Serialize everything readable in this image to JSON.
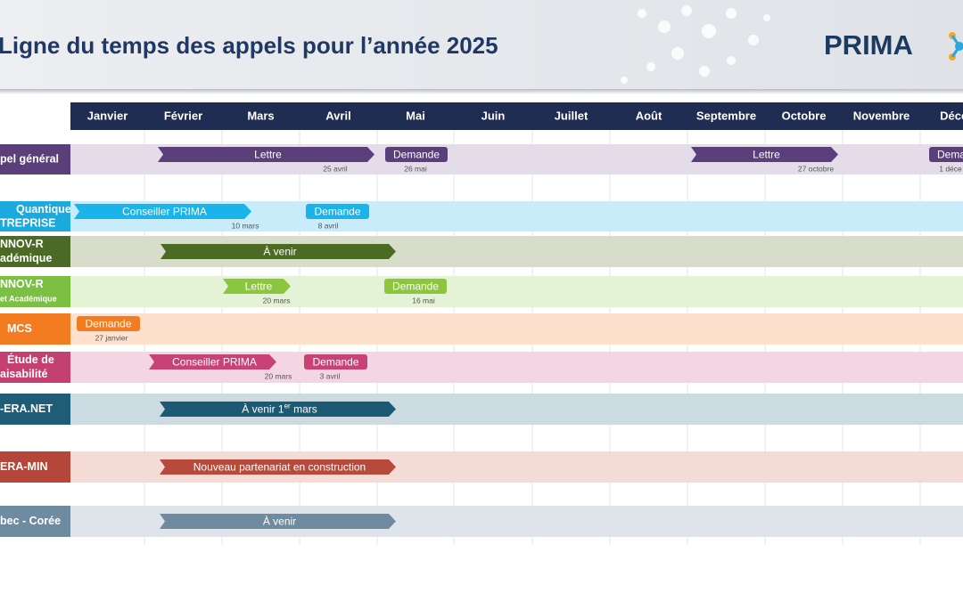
{
  "header": {
    "title": "Ligne du temps des appels pour l’année 2025",
    "logo": "PRIMA"
  },
  "months": [
    "Janvier",
    "Février",
    "Mars",
    "Avril",
    "Mai",
    "Juin",
    "Juillet",
    "Août",
    "Septembre",
    "Octobre",
    "Novembre",
    "Décem"
  ],
  "rows": [
    {
      "label": [
        "pel général"
      ],
      "items": [
        {
          "text": "Lettre",
          "date": "25 avril"
        },
        {
          "text": "Demande",
          "date": "26 mai"
        },
        {
          "text": "Lettre",
          "date": "27 octobre"
        },
        {
          "text": "Dema",
          "date": "1 déce"
        }
      ]
    },
    {
      "label": [
        "Quantique",
        "TREPRISE"
      ],
      "items": [
        {
          "text": "Conseiller PRIMA",
          "date": "10 mars"
        },
        {
          "text": "Demande",
          "date": "8 avril"
        }
      ]
    },
    {
      "label": [
        "NNOV-R",
        "adémique"
      ],
      "items": [
        {
          "text": "À venir"
        }
      ]
    },
    {
      "label": [
        "NNOV-R",
        "et Académique"
      ],
      "items": [
        {
          "text": "Lettre",
          "date": "20 mars"
        },
        {
          "text": "Demande",
          "date": "16 mai"
        }
      ]
    },
    {
      "label": [
        "MCS"
      ],
      "items": [
        {
          "text": "Demande",
          "date": "27 janvier"
        }
      ]
    },
    {
      "label": [
        "Étude de",
        "aisabilité"
      ],
      "items": [
        {
          "text": "Conseiller PRIMA",
          "date": "20 mars"
        },
        {
          "text": "Demande",
          "date": "3 avril"
        }
      ]
    },
    {
      "label": [
        "-ERA.NET"
      ],
      "items": [
        {
          "text": "À venir 1",
          "superscript": "er",
          "text_end": " mars"
        }
      ]
    },
    {
      "label": [
        "ERA-MIN"
      ],
      "items": [
        {
          "text": "Nouveau partenariat en construction"
        }
      ]
    },
    {
      "label": [
        "bec - Corée"
      ],
      "items": [
        {
          "text": "À venir"
        }
      ]
    }
  ]
}
